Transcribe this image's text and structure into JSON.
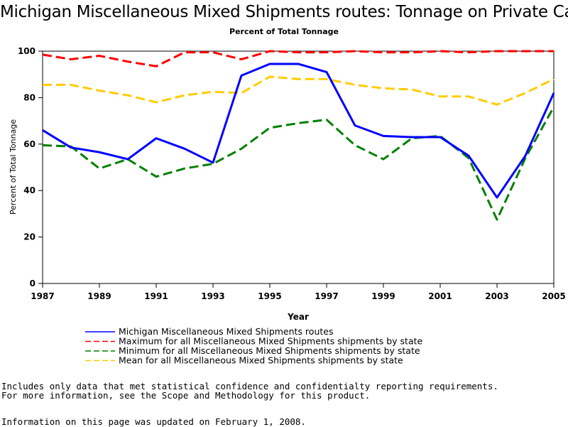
{
  "chart_data": {
    "type": "line",
    "title": "Michigan Miscellaneous Mixed Shipments routes: Tonnage on Private Cars",
    "subtitle": "Percent of Total Tonnage",
    "xlabel": "Year",
    "ylabel": "Percent of Total Tonnage",
    "xlim": [
      1987,
      2005
    ],
    "ylim": [
      0,
      100
    ],
    "xticks": [
      1987,
      1989,
      1991,
      1993,
      1995,
      1997,
      1999,
      2001,
      2003,
      2005
    ],
    "yticks": [
      0,
      20,
      40,
      60,
      80,
      100
    ],
    "grid": false,
    "legend_position": "bottom",
    "x": [
      1987,
      1988,
      1989,
      1990,
      1991,
      1992,
      1993,
      1994,
      1995,
      1996,
      1997,
      1998,
      1999,
      2000,
      2001,
      2002,
      2003,
      2004,
      2005
    ],
    "series": [
      {
        "name": "Michigan Miscellaneous Mixed Shipments routes",
        "color": "#0000ff",
        "style": "solid",
        "values": [
          66,
          58.5,
          56.5,
          53.5,
          62.5,
          58,
          52,
          89.5,
          94.5,
          94.5,
          91,
          68,
          63.5,
          63,
          63,
          55,
          37,
          55,
          82
        ]
      },
      {
        "name": "Maximum for all Miscellaneous Mixed Shipments shipments by state",
        "color": "#ff0000",
        "style": "dashed",
        "values": [
          98.5,
          96.5,
          98,
          95.5,
          93.5,
          99.5,
          99.5,
          96.5,
          100,
          99.5,
          99.5,
          100,
          99.5,
          99.5,
          100,
          99.5,
          100,
          100,
          100
        ]
      },
      {
        "name": "Minimum for all Miscellaneous Mixed Shipments shipments by state",
        "color": "#008000",
        "style": "dashed",
        "values": [
          59.5,
          59,
          49.5,
          53.5,
          46,
          49.5,
          51.5,
          58,
          67,
          69,
          70.5,
          59.5,
          53.5,
          62.5,
          63.5,
          54,
          27.5,
          54,
          76
        ]
      },
      {
        "name": "Mean for all Miscellaneous Mixed Shipments shipments by state",
        "color": "#ffcc00",
        "style": "dashed",
        "values": [
          85.5,
          85.5,
          83,
          81,
          78,
          81,
          82.5,
          82,
          89,
          88,
          88,
          85.5,
          84,
          83.5,
          80.5,
          80.5,
          77,
          82,
          88
        ]
      }
    ]
  },
  "notes": {
    "line1": "Includes only data that met statistical confidence and confidentialty reporting requirements.",
    "line2": "For more information, see the Scope and Methodology for this product.",
    "line3": "Information on this page was updated on February 1, 2008."
  }
}
